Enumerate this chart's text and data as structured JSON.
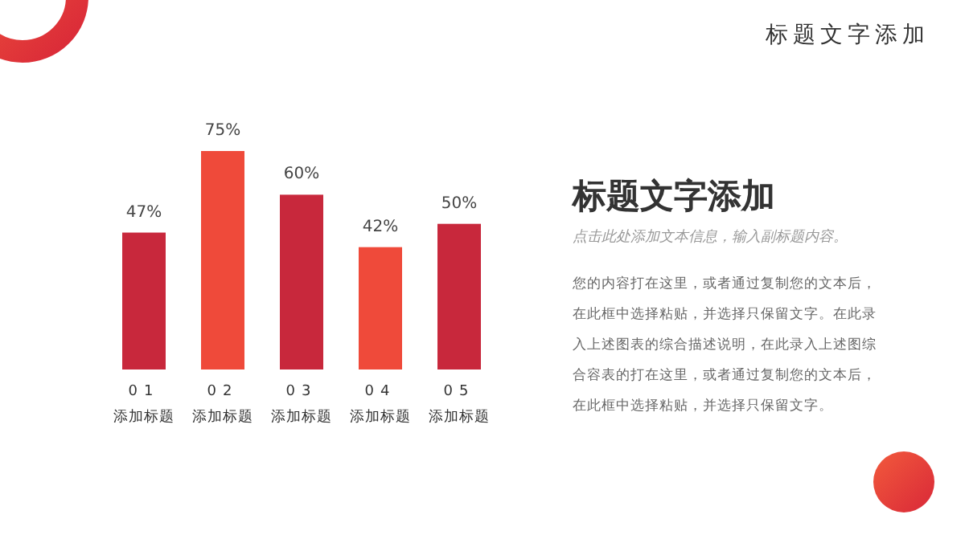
{
  "chart_data": [
    {
      "type": "bar",
      "categories": [
        "01\n添加标题",
        "02\n添加标题",
        "03\n添加标题",
        "04\n添加标题",
        "05\n添加标题"
      ],
      "values": [
        47,
        75,
        60,
        42,
        50
      ],
      "colors": [
        "#c8283c",
        "#ef4a3a",
        "#c8283c",
        "#ef4a3a",
        "#c8283c"
      ],
      "value_labels": [
        "47%",
        "75%",
        "60%",
        "42%",
        "50%"
      ]
    },
    {
      "type": "other",
      "title": "标题文字添加",
      "subtitle": "点击此处添加文本信息，输入副标题内容。",
      "annotations": [
        "您的内容打在这里，或者通过复制您的文本后，在此框中选择粘贴，并选择只保留文字。在此录入上述图表的综合描述说明，在此录入上述图综合容表的打在这里，或者通过复制您的文本后，在此框中选择粘贴，并选择只保留文字。",
        "标题文字添加"
      ]
    }
  ]
}
